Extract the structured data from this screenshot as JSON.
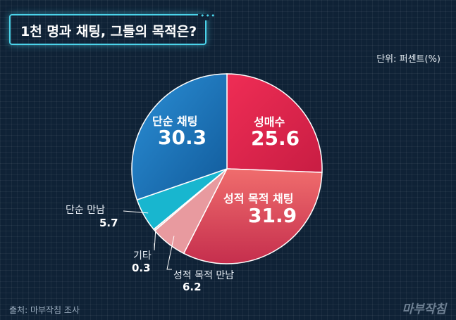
{
  "header": {
    "title": "1천 명과 채팅, 그들의 목적은?",
    "title_dots": "•••",
    "unit": "단위: 퍼센트(%)"
  },
  "footer": {
    "source": "출처: 마부작침 조사",
    "logo": "마부작침"
  },
  "chart_data": {
    "type": "pie",
    "title": "1천 명과 채팅, 그들의 목적은?",
    "unit": "퍼센트(%)",
    "start": "12 o'clock, clockwise",
    "slices": [
      {
        "label": "성매수",
        "value": 25.6,
        "color": "#e8274e",
        "display": "25.6"
      },
      {
        "label": "성적 목적 채팅",
        "value": 31.9,
        "color": "#e8505a",
        "display": "31.9"
      },
      {
        "label": "성적 목적 만남",
        "value": 6.2,
        "color": "#e89a9f",
        "display": "6.2"
      },
      {
        "label": "기타",
        "value": 0.3,
        "color": "#f2c9cc",
        "display": "0.3"
      },
      {
        "label": "단순 만남",
        "value": 5.7,
        "color": "#18b6cf",
        "display": "5.7"
      },
      {
        "label": "단순 채팅",
        "value": 30.3,
        "color": "#1a74b8",
        "display": "30.3"
      }
    ]
  }
}
